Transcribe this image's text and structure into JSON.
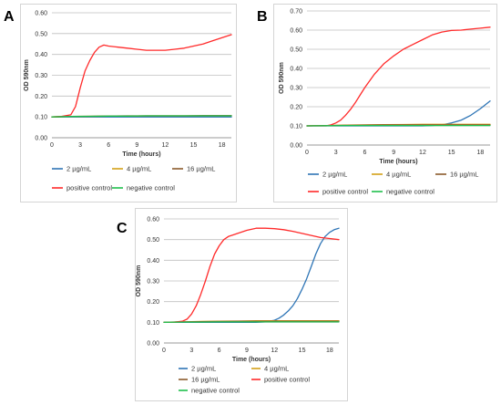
{
  "chart_data": [
    {
      "panel": "A",
      "type": "line",
      "xlabel": "Time (hours)",
      "ylabel": "OD 590nm",
      "xlim": [
        0,
        19
      ],
      "ylim": [
        0,
        0.6
      ],
      "xticks": [
        0,
        3,
        6,
        9,
        12,
        15,
        18
      ],
      "yticks": [
        0.0,
        0.1,
        0.2,
        0.3,
        0.4,
        0.5,
        0.6
      ],
      "ytick_labels": [
        "0.00",
        "0.10",
        "0.20",
        "0.30",
        "0.40",
        "0.50",
        "0.60"
      ],
      "grid": "horizontal",
      "legend_position": "bottom",
      "series": [
        {
          "name": "2 µg/mL",
          "color": "#2e75b6",
          "x": [
            0,
            2,
            4,
            6,
            8,
            10,
            12,
            14,
            16,
            18,
            19
          ],
          "y": [
            0.1,
            0.1,
            0.1,
            0.1,
            0.1,
            0.1,
            0.1,
            0.1,
            0.1,
            0.1,
            0.1
          ]
        },
        {
          "name": "4 µg/mL",
          "color": "#d4a017",
          "x": [
            0,
            2,
            4,
            6,
            8,
            10,
            12,
            14,
            16,
            18,
            19
          ],
          "y": [
            0.1,
            0.102,
            0.103,
            0.104,
            0.104,
            0.105,
            0.105,
            0.105,
            0.105,
            0.105,
            0.105
          ]
        },
        {
          "name": "16 µg/mL",
          "color": "#8b5a2b",
          "x": [
            0,
            2,
            4,
            6,
            8,
            10,
            12,
            14,
            16,
            18,
            19
          ],
          "y": [
            0.1,
            0.102,
            0.103,
            0.104,
            0.105,
            0.105,
            0.105,
            0.105,
            0.106,
            0.106,
            0.106
          ]
        },
        {
          "name": "positive control",
          "color": "#ff2a2a",
          "x": [
            0,
            1,
            2,
            2.5,
            3,
            3.5,
            4,
            4.5,
            5,
            5.5,
            6,
            7,
            8,
            9,
            10,
            11,
            12,
            13,
            14,
            15,
            16,
            17,
            18,
            19
          ],
          "y": [
            0.1,
            0.102,
            0.11,
            0.15,
            0.24,
            0.32,
            0.37,
            0.41,
            0.435,
            0.445,
            0.44,
            0.435,
            0.43,
            0.425,
            0.42,
            0.42,
            0.42,
            0.425,
            0.43,
            0.44,
            0.45,
            0.465,
            0.48,
            0.495
          ]
        },
        {
          "name": "negative control",
          "color": "#1fbf4c",
          "x": [
            0,
            2,
            4,
            6,
            8,
            10,
            12,
            14,
            16,
            18,
            19
          ],
          "y": [
            0.1,
            0.102,
            0.103,
            0.104,
            0.104,
            0.105,
            0.105,
            0.105,
            0.105,
            0.105,
            0.105
          ]
        }
      ]
    },
    {
      "panel": "B",
      "type": "line",
      "xlabel": "Time (hours)",
      "ylabel": "OD 590nm",
      "xlim": [
        0,
        19
      ],
      "ylim": [
        0,
        0.7
      ],
      "xticks": [
        0,
        3,
        6,
        9,
        12,
        15,
        18
      ],
      "yticks": [
        0.0,
        0.1,
        0.2,
        0.3,
        0.4,
        0.5,
        0.6,
        0.7
      ],
      "ytick_labels": [
        "0.00",
        "0.10",
        "0.20",
        "0.30",
        "0.40",
        "0.50",
        "0.60",
        "0.70"
      ],
      "grid": "horizontal",
      "legend_position": "bottom",
      "series": [
        {
          "name": "2 µg/mL",
          "color": "#2e75b6",
          "x": [
            0,
            2,
            4,
            6,
            8,
            10,
            12,
            13,
            14,
            15,
            16,
            17,
            18,
            19
          ],
          "y": [
            0.1,
            0.1,
            0.1,
            0.1,
            0.1,
            0.1,
            0.1,
            0.102,
            0.105,
            0.115,
            0.13,
            0.155,
            0.19,
            0.23
          ]
        },
        {
          "name": "4 µg/mL",
          "color": "#d4a017",
          "x": [
            0,
            2,
            4,
            6,
            8,
            10,
            12,
            14,
            16,
            18,
            19
          ],
          "y": [
            0.1,
            0.102,
            0.104,
            0.105,
            0.106,
            0.107,
            0.108,
            0.108,
            0.108,
            0.108,
            0.108
          ]
        },
        {
          "name": "16 µg/mL",
          "color": "#8b5a2b",
          "x": [
            0,
            2,
            4,
            6,
            8,
            10,
            12,
            14,
            16,
            18,
            19
          ],
          "y": [
            0.1,
            0.102,
            0.103,
            0.104,
            0.105,
            0.105,
            0.105,
            0.105,
            0.105,
            0.105,
            0.105
          ]
        },
        {
          "name": "positive control",
          "color": "#ff2a2a",
          "x": [
            0,
            2,
            2.5,
            3,
            3.5,
            4,
            4.5,
            5,
            5.5,
            6,
            6.5,
            7,
            8,
            9,
            10,
            11,
            12,
            13,
            14,
            15,
            16,
            17,
            18,
            19
          ],
          "y": [
            0.1,
            0.1,
            0.105,
            0.115,
            0.13,
            0.155,
            0.185,
            0.22,
            0.26,
            0.3,
            0.335,
            0.37,
            0.425,
            0.465,
            0.5,
            0.525,
            0.55,
            0.575,
            0.59,
            0.598,
            0.6,
            0.605,
            0.61,
            0.615
          ]
        },
        {
          "name": "negative control",
          "color": "#1fbf4c",
          "x": [
            0,
            2,
            4,
            6,
            8,
            10,
            12,
            14,
            16,
            18,
            19
          ],
          "y": [
            0.1,
            0.101,
            0.102,
            0.102,
            0.102,
            0.102,
            0.102,
            0.102,
            0.102,
            0.102,
            0.102
          ]
        }
      ]
    },
    {
      "panel": "C",
      "type": "line",
      "xlabel": "Time (hours)",
      "ylabel": "OD 590nm",
      "xlim": [
        0,
        19
      ],
      "ylim": [
        0,
        0.6
      ],
      "xticks": [
        0,
        3,
        6,
        9,
        12,
        15,
        18
      ],
      "yticks": [
        0.0,
        0.1,
        0.2,
        0.3,
        0.4,
        0.5,
        0.6
      ],
      "ytick_labels": [
        "0.00",
        "0.10",
        "0.20",
        "0.30",
        "0.40",
        "0.50",
        "0.60"
      ],
      "grid": "horizontal",
      "legend_position": "bottom",
      "series": [
        {
          "name": "2 µg/mL",
          "color": "#2e75b6",
          "x": [
            0,
            2,
            4,
            6,
            8,
            10,
            11,
            12,
            12.5,
            13,
            13.5,
            14,
            14.5,
            15,
            15.5,
            16,
            16.5,
            17,
            17.5,
            18,
            18.5,
            19
          ],
          "y": [
            0.1,
            0.1,
            0.1,
            0.1,
            0.1,
            0.1,
            0.102,
            0.11,
            0.12,
            0.135,
            0.155,
            0.18,
            0.215,
            0.26,
            0.31,
            0.37,
            0.43,
            0.48,
            0.515,
            0.535,
            0.548,
            0.555
          ]
        },
        {
          "name": "4 µg/mL",
          "color": "#d4a017",
          "x": [
            0,
            2,
            4,
            6,
            8,
            10,
            12,
            14,
            16,
            18,
            19
          ],
          "y": [
            0.1,
            0.102,
            0.104,
            0.105,
            0.106,
            0.107,
            0.107,
            0.107,
            0.107,
            0.107,
            0.107
          ]
        },
        {
          "name": "16 µg/mL",
          "color": "#8b5a2b",
          "x": [
            0,
            2,
            4,
            6,
            8,
            10,
            12,
            14,
            16,
            18,
            19
          ],
          "y": [
            0.1,
            0.102,
            0.103,
            0.104,
            0.105,
            0.105,
            0.105,
            0.105,
            0.105,
            0.105,
            0.105
          ]
        },
        {
          "name": "positive control",
          "color": "#ff2a2a",
          "x": [
            0,
            1,
            2,
            2.5,
            3,
            3.5,
            4,
            4.5,
            5,
            5.5,
            6,
            6.5,
            7,
            8,
            9,
            10,
            11,
            12,
            13,
            14,
            15,
            16,
            17,
            18,
            19
          ],
          "y": [
            0.1,
            0.1,
            0.105,
            0.115,
            0.14,
            0.18,
            0.235,
            0.3,
            0.37,
            0.43,
            0.47,
            0.5,
            0.515,
            0.53,
            0.545,
            0.555,
            0.555,
            0.553,
            0.548,
            0.54,
            0.53,
            0.52,
            0.51,
            0.505,
            0.5
          ]
        },
        {
          "name": "negative control",
          "color": "#1fbf4c",
          "x": [
            0,
            2,
            4,
            6,
            8,
            10,
            12,
            14,
            16,
            18,
            19
          ],
          "y": [
            0.1,
            0.101,
            0.101,
            0.102,
            0.102,
            0.102,
            0.102,
            0.102,
            0.102,
            0.102,
            0.102
          ]
        }
      ]
    }
  ]
}
